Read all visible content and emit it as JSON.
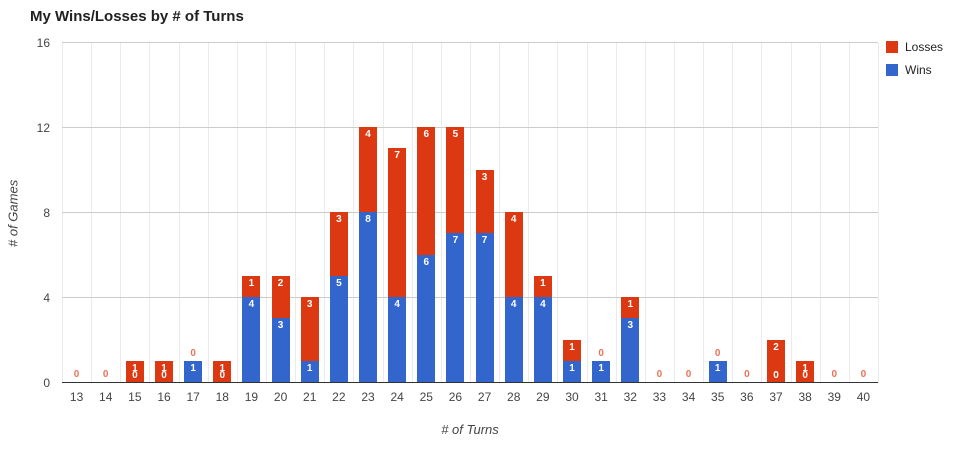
{
  "title": "My Wins/Losses by # of Turns",
  "legend": {
    "items": [
      {
        "label": "Losses",
        "color": "#dc3912"
      },
      {
        "label": "Wins",
        "color": "#3366cc"
      }
    ]
  },
  "chart_data": {
    "type": "bar",
    "stacked": true,
    "title": "My Wins/Losses by # of Turns",
    "xlabel": "# of Turns",
    "ylabel": "# of Games",
    "categories": [
      13,
      14,
      15,
      16,
      17,
      18,
      19,
      20,
      21,
      22,
      23,
      24,
      25,
      26,
      27,
      28,
      29,
      30,
      31,
      32,
      33,
      34,
      35,
      36,
      37,
      38,
      39,
      40
    ],
    "series": [
      {
        "name": "Wins",
        "color": "#3366cc",
        "values": [
          0,
          0,
          0,
          0,
          1,
          0,
          4,
          3,
          1,
          5,
          8,
          4,
          6,
          7,
          7,
          4,
          4,
          1,
          1,
          3,
          0,
          0,
          1,
          0,
          0,
          0,
          0,
          0
        ]
      },
      {
        "name": "Losses",
        "color": "#dc3912",
        "values": [
          0,
          0,
          1,
          1,
          0,
          1,
          1,
          2,
          3,
          3,
          4,
          7,
          6,
          5,
          3,
          4,
          1,
          1,
          0,
          1,
          0,
          0,
          0,
          0,
          2,
          1,
          0,
          0
        ]
      }
    ],
    "ylim": [
      0,
      16
    ],
    "yticks": [
      0,
      4,
      8,
      12,
      16
    ],
    "grid": true,
    "legend_position": "right",
    "zero_label_color": "#e8735a"
  }
}
